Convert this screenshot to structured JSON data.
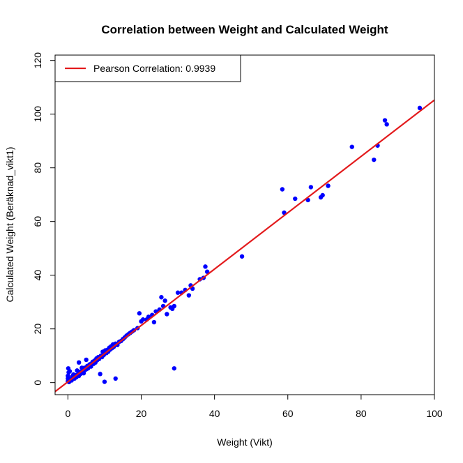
{
  "chart_data": {
    "type": "scatter",
    "title": "Correlation between Weight and Calculated Weight",
    "xlabel": "Weight (Vikt)",
    "ylabel": "Calculated Weight (Beräknad_vikt1)",
    "xlim": [
      -3.5,
      100
    ],
    "ylim": [
      -4.5,
      122
    ],
    "xticks": [
      0,
      20,
      40,
      60,
      80,
      100
    ],
    "yticks": [
      0,
      20,
      40,
      60,
      80,
      100,
      120
    ],
    "grid": false,
    "legend": {
      "position": "top-left",
      "label": "Pearson Correlation:  0.9939"
    },
    "colors": {
      "points": "#0000ff",
      "fit_line": "#e31a1c",
      "frame": "#000000"
    },
    "fit_line": {
      "intercept": 0.3,
      "slope": 1.0495
    },
    "series": [
      {
        "points": [
          [
            0,
            0.5
          ],
          [
            0,
            1.5
          ],
          [
            0,
            2.5
          ],
          [
            0.1,
            5.3
          ],
          [
            0.2,
            3.8
          ],
          [
            0.3,
            0.2
          ],
          [
            0.5,
            4.2
          ],
          [
            0.8,
            1.3
          ],
          [
            1,
            0.8
          ],
          [
            1.2,
            2.2
          ],
          [
            1.5,
            3
          ],
          [
            1.8,
            1.5
          ],
          [
            2,
            2.8
          ],
          [
            2.3,
            2
          ],
          [
            2.5,
            4.5
          ],
          [
            2.8,
            3.2
          ],
          [
            3,
            7.5
          ],
          [
            3,
            2.5
          ],
          [
            3.3,
            4
          ],
          [
            3.5,
            3.3
          ],
          [
            3.8,
            5.5
          ],
          [
            4,
            4.2
          ],
          [
            4.3,
            3.5
          ],
          [
            4.5,
            5.5
          ],
          [
            4.8,
            4.8
          ],
          [
            5,
            8.5
          ],
          [
            5,
            5
          ],
          [
            5.3,
            6.2
          ],
          [
            5.5,
            5.3
          ],
          [
            5.8,
            6.5
          ],
          [
            6,
            6.8
          ],
          [
            6.3,
            6
          ],
          [
            6.5,
            7.2
          ],
          [
            6.8,
            7.8
          ],
          [
            7,
            7
          ],
          [
            7.3,
            8.2
          ],
          [
            7.5,
            7.5
          ],
          [
            7.8,
            9
          ],
          [
            8,
            8.4
          ],
          [
            8.3,
            9.5
          ],
          [
            8.5,
            8.8
          ],
          [
            8.8,
            3.2
          ],
          [
            9,
            10
          ],
          [
            9.3,
            9.5
          ],
          [
            9.5,
            11.5
          ],
          [
            9.8,
            10.3
          ],
          [
            10,
            0.3
          ],
          [
            10.2,
            12
          ],
          [
            10.5,
            11
          ],
          [
            10.8,
            12.2
          ],
          [
            11,
            11.5
          ],
          [
            11.3,
            13
          ],
          [
            11.5,
            12.3
          ],
          [
            11.8,
            13.5
          ],
          [
            12,
            12.8
          ],
          [
            12.3,
            14.2
          ],
          [
            12.5,
            13.3
          ],
          [
            13,
            1.5
          ],
          [
            13,
            14.5
          ],
          [
            13.5,
            14
          ],
          [
            14,
            15.2
          ],
          [
            14.5,
            15.5
          ],
          [
            15,
            16.2
          ],
          [
            15.5,
            16.8
          ],
          [
            16,
            17.5
          ],
          [
            16.5,
            18
          ],
          [
            17,
            18.5
          ],
          [
            17.5,
            19
          ],
          [
            18,
            19.5
          ],
          [
            19,
            20.3
          ],
          [
            19.5,
            25.8
          ],
          [
            20,
            22.8
          ],
          [
            20.5,
            23.5
          ],
          [
            21.5,
            23.5
          ],
          [
            22,
            24.5
          ],
          [
            23,
            25.2
          ],
          [
            23.5,
            22.5
          ],
          [
            24,
            26.5
          ],
          [
            25,
            27.2
          ],
          [
            25.5,
            31.8
          ],
          [
            26,
            28.5
          ],
          [
            26.5,
            30.5
          ],
          [
            27,
            25.5
          ],
          [
            28,
            28
          ],
          [
            28.5,
            27.5
          ],
          [
            29,
            28.5
          ],
          [
            29,
            5.3
          ],
          [
            30,
            33.5
          ],
          [
            31,
            33.5
          ],
          [
            32,
            34.5
          ],
          [
            33,
            32.5
          ],
          [
            33.5,
            36.2
          ],
          [
            34,
            35
          ],
          [
            36,
            38.5
          ],
          [
            37,
            39
          ],
          [
            37.5,
            43.2
          ],
          [
            38,
            41.3
          ],
          [
            47.5,
            47
          ],
          [
            58.5,
            72
          ],
          [
            59,
            63.3
          ],
          [
            62,
            68.5
          ],
          [
            65.5,
            68
          ],
          [
            66.3,
            72.8
          ],
          [
            69,
            69
          ],
          [
            69.5,
            69.8
          ],
          [
            71,
            73.3
          ],
          [
            77.5,
            87.8
          ],
          [
            83.5,
            83
          ],
          [
            84.5,
            88.3
          ],
          [
            86.5,
            97.7
          ],
          [
            87,
            96.2
          ],
          [
            96,
            102.3
          ]
        ]
      }
    ]
  }
}
